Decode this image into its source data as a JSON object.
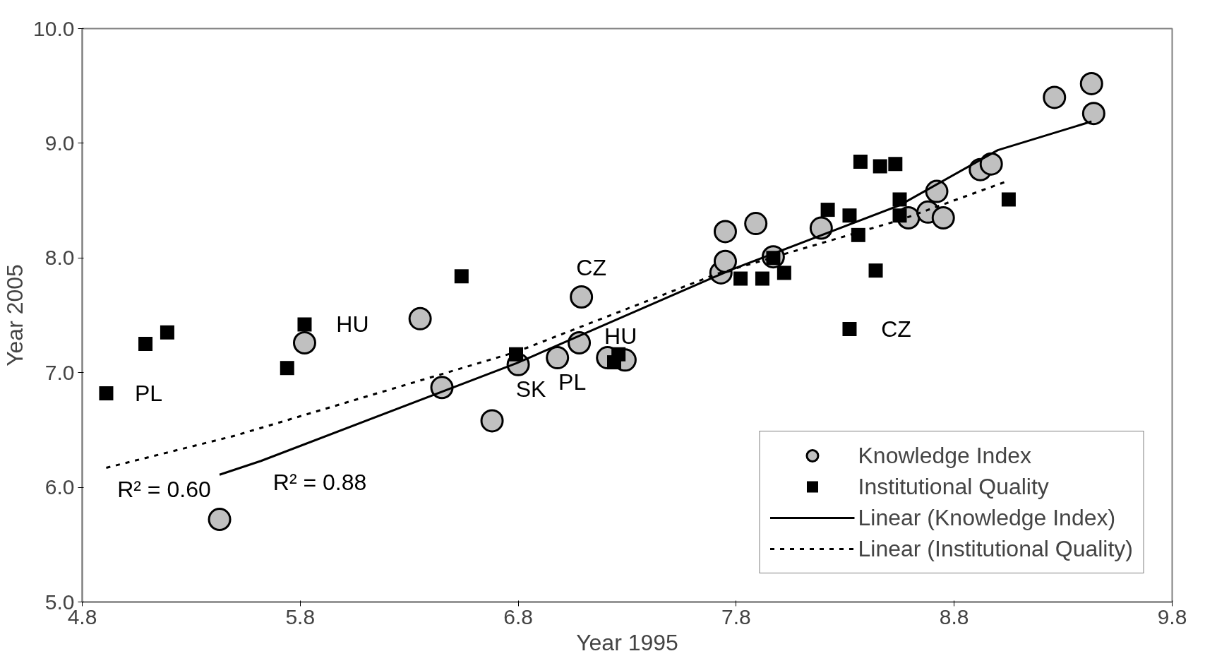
{
  "chart_data": {
    "type": "scatter",
    "xlabel": "Year 1995",
    "ylabel": "Year 2005",
    "xlim": [
      4.8,
      9.8
    ],
    "xticks": [
      {
        "value": 4.8,
        "label": "4.8"
      },
      {
        "value": 5.8,
        "label": "5.8"
      },
      {
        "value": 6.8,
        "label": "6.8"
      },
      {
        "value": 7.8,
        "label": "7.8"
      },
      {
        "value": 8.8,
        "label": "8.8"
      },
      {
        "value": 9.8,
        "label": "9.8"
      }
    ],
    "ylim": [
      5.0,
      10.0
    ],
    "yticks": [
      {
        "value": 5.0,
        "label": "5.0"
      },
      {
        "value": 6.0,
        "label": "6.0"
      },
      {
        "value": 7.0,
        "label": "7.0"
      },
      {
        "value": 8.0,
        "label": "8.0"
      },
      {
        "value": 9.0,
        "label": "9.0"
      },
      {
        "value": 10.0,
        "label": "10.0"
      }
    ],
    "grid": false,
    "legend": "bottom right",
    "series": [
      {
        "name": "Knowledge Index",
        "marker": "circle",
        "color": "#c0c0c0",
        "x": [
          5.43,
          5.82,
          6.35,
          6.45,
          6.68,
          6.8,
          6.98,
          7.08,
          7.09,
          7.21,
          7.29,
          7.73,
          7.75,
          7.75,
          7.89,
          7.97,
          8.19,
          8.59,
          8.68,
          8.72,
          8.75,
          8.92,
          8.97,
          9.26,
          9.43,
          9.44
        ],
        "values": [
          5.72,
          7.26,
          7.47,
          6.87,
          6.58,
          7.07,
          7.13,
          7.26,
          7.66,
          7.13,
          7.11,
          7.87,
          7.97,
          8.23,
          8.3,
          8.01,
          8.26,
          8.35,
          8.4,
          8.58,
          8.35,
          8.77,
          8.82,
          9.4,
          9.52,
          9.26
        ]
      },
      {
        "name": "Institutional Quality",
        "marker": "square",
        "color": "#000000",
        "x": [
          4.91,
          5.09,
          5.19,
          5.74,
          5.82,
          6.54,
          6.79,
          7.24,
          7.26,
          7.82,
          7.92,
          7.97,
          8.02,
          8.22,
          8.32,
          8.32,
          8.36,
          8.37,
          8.44,
          8.46,
          8.53,
          8.55,
          8.55,
          9.05
        ],
        "values": [
          6.82,
          7.25,
          7.35,
          7.04,
          7.42,
          7.84,
          7.16,
          7.09,
          7.16,
          7.82,
          7.82,
          8.0,
          7.87,
          8.42,
          8.37,
          7.38,
          8.2,
          8.84,
          7.89,
          8.8,
          8.82,
          8.51,
          8.37,
          8.51
        ]
      },
      {
        "name": "Linear (Knowledge Index)",
        "type": "line",
        "line_style": "solid",
        "color": "#000000",
        "x": [
          5.43,
          5.62,
          6.79,
          7.78,
          8.55,
          9.0,
          9.43
        ],
        "values": [
          6.11,
          6.23,
          7.08,
          7.9,
          8.46,
          8.94,
          9.19
        ]
      },
      {
        "name": "Linear (Institutional Quality)",
        "type": "line",
        "line_style": "dotted",
        "color": "#000000",
        "x": [
          4.91,
          5.5,
          6.79,
          7.71,
          8.55,
          9.03
        ],
        "values": [
          6.17,
          6.45,
          7.18,
          7.86,
          8.33,
          8.66
        ]
      }
    ],
    "annotations": [
      {
        "text": "PL",
        "x": 4.91,
        "y": 6.82
      },
      {
        "text": "HU",
        "x": 5.82,
        "y": 7.42
      },
      {
        "text": "CZ",
        "x": 7.09,
        "y": 7.66
      },
      {
        "text": "HU",
        "x": 7.26,
        "y": 7.16
      },
      {
        "text": "SK",
        "x": 6.8,
        "y": 7.07
      },
      {
        "text": "PL",
        "x": 6.98,
        "y": 7.13
      },
      {
        "text": "CZ",
        "x": 8.32,
        "y": 7.38
      },
      {
        "text": "R² = 0.60",
        "x": 4.91,
        "y": 6.17
      },
      {
        "text": "R² = 0.88",
        "x": 5.43,
        "y": 6.11
      }
    ]
  }
}
